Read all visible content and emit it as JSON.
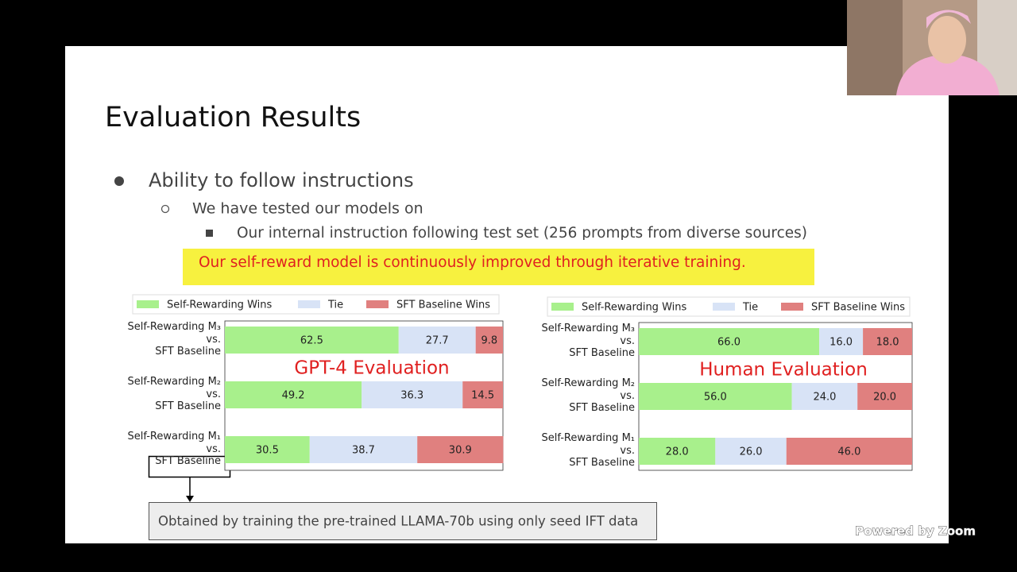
{
  "zoom": {
    "watermark": "Powered by Zoom"
  },
  "slide": {
    "title": "Evaluation Results",
    "bullet": "Ability to follow instructions",
    "sub_bullet": "We have tested our models on",
    "sub_sub_bullet": "Our internal instruction following test set (256 prompts from diverse sources)",
    "highlight": "Our self-reward model is continuously improved through iterative training.",
    "callout": "Obtained by training the pre-trained LLAMA-70b using only seed IFT data"
  },
  "chart_data": [
    {
      "type": "bar",
      "stacked": true,
      "legend": "top",
      "annotation": "GPT-4 Evaluation",
      "categories": [
        "Self-Rewarding M₃\nvs.\nSFT Baseline",
        "Self-Rewarding M₂\nvs.\nSFT Baseline",
        "Self-Rewarding M₁\nvs.\nSFT Baseline"
      ],
      "xlim": [
        0,
        100
      ],
      "series": [
        {
          "name": "Self-Rewarding Wins",
          "color": "#a8f08c",
          "values": [
            62.5,
            49.2,
            30.5
          ]
        },
        {
          "name": "Tie",
          "color": "#d8e3f6",
          "values": [
            27.7,
            36.3,
            38.7
          ]
        },
        {
          "name": "SFT Baseline Wins",
          "color": "#e0807f",
          "values": [
            9.8,
            14.5,
            30.9
          ]
        }
      ]
    },
    {
      "type": "bar",
      "stacked": true,
      "legend": "top",
      "annotation": "Human Evaluation",
      "categories": [
        "Self-Rewarding M₃\nvs.\nSFT Baseline",
        "Self-Rewarding M₂\nvs.\nSFT Baseline",
        "Self-Rewarding M₁\nvs.\nSFT Baseline"
      ],
      "xlim": [
        0,
        100
      ],
      "series": [
        {
          "name": "Self-Rewarding Wins",
          "color": "#a8f08c",
          "values": [
            66,
            56,
            28
          ],
          "value_labels": [
            "66.0",
            "56.0",
            "28.0"
          ]
        },
        {
          "name": "Tie",
          "color": "#d8e3f6",
          "values": [
            16,
            24,
            26
          ],
          "value_labels": [
            "16.0",
            "24.0",
            "26.0"
          ]
        },
        {
          "name": "SFT Baseline Wins",
          "color": "#e0807f",
          "values": [
            18,
            20,
            46
          ],
          "value_labels": [
            "18.0",
            "20.0",
            "46.0"
          ]
        }
      ]
    }
  ]
}
